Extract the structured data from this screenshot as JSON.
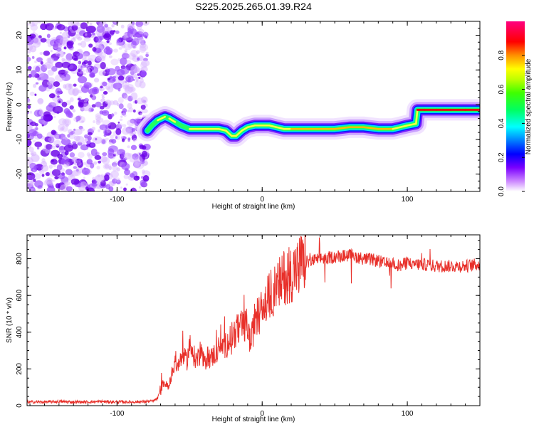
{
  "title": "S225.2025.265.01.39.R24",
  "colors": {
    "snr_line": "#e8302a",
    "noise": "#8a2be2",
    "axis": "#000000"
  },
  "colorbar": {
    "label": "Normalized spectral amplitude",
    "ticks": [
      "0.0",
      "0.2",
      "0.4",
      "0.6",
      "0.8"
    ],
    "tick_values": [
      0.0,
      0.2,
      0.4,
      0.6,
      0.8
    ],
    "range": [
      0,
      1
    ]
  },
  "chart_data": [
    {
      "type": "heatmap",
      "name": "spectrogram",
      "title": "S225.2025.265.01.39.R24",
      "xlabel": "Height of straight line (km)",
      "ylabel": "Frequency (Hz)",
      "xlim": [
        -162,
        150
      ],
      "ylim": [
        -25,
        24
      ],
      "xticks": [
        -100,
        0,
        100
      ],
      "xtick_labels": [
        "-100",
        "0",
        "100"
      ],
      "yticks": [
        20,
        10,
        0,
        -10,
        -20
      ],
      "ytick_labels": [
        "20",
        "10",
        "0",
        "-10",
        "-20"
      ],
      "noise_region_x": [
        -162,
        -79
      ],
      "ridge": {
        "x": [
          -79,
          -76,
          -72,
          -67,
          -64,
          -60,
          -56,
          -50,
          -45,
          -40,
          -35,
          -30,
          -25,
          -21,
          -18,
          -14,
          -10,
          -5,
          0,
          5,
          10,
          15,
          20,
          30,
          40,
          50,
          60,
          70,
          80,
          90,
          95,
          100,
          106,
          107,
          108,
          112,
          120,
          130,
          140,
          150
        ],
        "y": [
          -7.5,
          -6,
          -4.5,
          -3.5,
          -4,
          -5,
          -6,
          -7,
          -7,
          -7,
          -7,
          -7,
          -7.5,
          -9,
          -9,
          -7.5,
          -6.5,
          -6,
          -6,
          -6,
          -6.5,
          -7,
          -7,
          -7,
          -7,
          -7,
          -6.5,
          -6.5,
          -7,
          -7,
          -6.5,
          -6,
          -5.5,
          -1.5,
          -1.5,
          -1.5,
          -1.5,
          -1.5,
          -1.5,
          -1.5
        ],
        "amplitude": [
          0.3,
          0.4,
          0.5,
          0.45,
          0.5,
          0.45,
          0.4,
          0.5,
          0.55,
          0.5,
          0.5,
          0.5,
          0.5,
          0.55,
          0.6,
          0.5,
          0.5,
          0.55,
          0.6,
          0.55,
          0.55,
          0.6,
          0.7,
          0.75,
          0.7,
          0.7,
          0.7,
          0.7,
          0.7,
          0.65,
          0.65,
          0.65,
          0.6,
          0.9,
          0.95,
          0.95,
          0.95,
          0.95,
          0.95,
          0.95
        ]
      }
    },
    {
      "type": "line",
      "name": "snr",
      "xlabel": "Height of straight line (km)",
      "ylabel": "SNR (10 * v/v)",
      "xlim": [
        -162,
        150
      ],
      "ylim": [
        0,
        930
      ],
      "xticks": [
        -100,
        0,
        100
      ],
      "xtick_labels": [
        "-100",
        "0",
        "100"
      ],
      "yticks": [
        0,
        200,
        400,
        600,
        800
      ],
      "ytick_labels": [
        "0",
        "200",
        "400",
        "600",
        "800"
      ],
      "series": [
        {
          "name": "SNR",
          "x": [
            -162,
            -150,
            -140,
            -130,
            -120,
            -110,
            -100,
            -90,
            -80,
            -75,
            -72,
            -70,
            -68,
            -65,
            -62,
            -60,
            -58,
            -55,
            -52,
            -50,
            -48,
            -45,
            -42,
            -40,
            -38,
            -35,
            -30,
            -25,
            -20,
            -15,
            -10,
            -8,
            -5,
            -2,
            0,
            5,
            10,
            15,
            20,
            25,
            30,
            35,
            40,
            50,
            60,
            70,
            80,
            85,
            90,
            95,
            100,
            105,
            110,
            120,
            130,
            140,
            150
          ],
          "y": [
            20,
            20,
            22,
            20,
            20,
            22,
            20,
            20,
            22,
            25,
            40,
            80,
            130,
            100,
            180,
            250,
            200,
            280,
            240,
            330,
            280,
            250,
            300,
            220,
            270,
            260,
            310,
            330,
            390,
            420,
            440,
            330,
            470,
            500,
            520,
            600,
            640,
            700,
            720,
            760,
            780,
            790,
            800,
            810,
            820,
            800,
            790,
            770,
            780,
            760,
            780,
            770,
            770,
            760,
            760,
            760,
            770
          ],
          "color": "#e8302a"
        }
      ]
    }
  ]
}
